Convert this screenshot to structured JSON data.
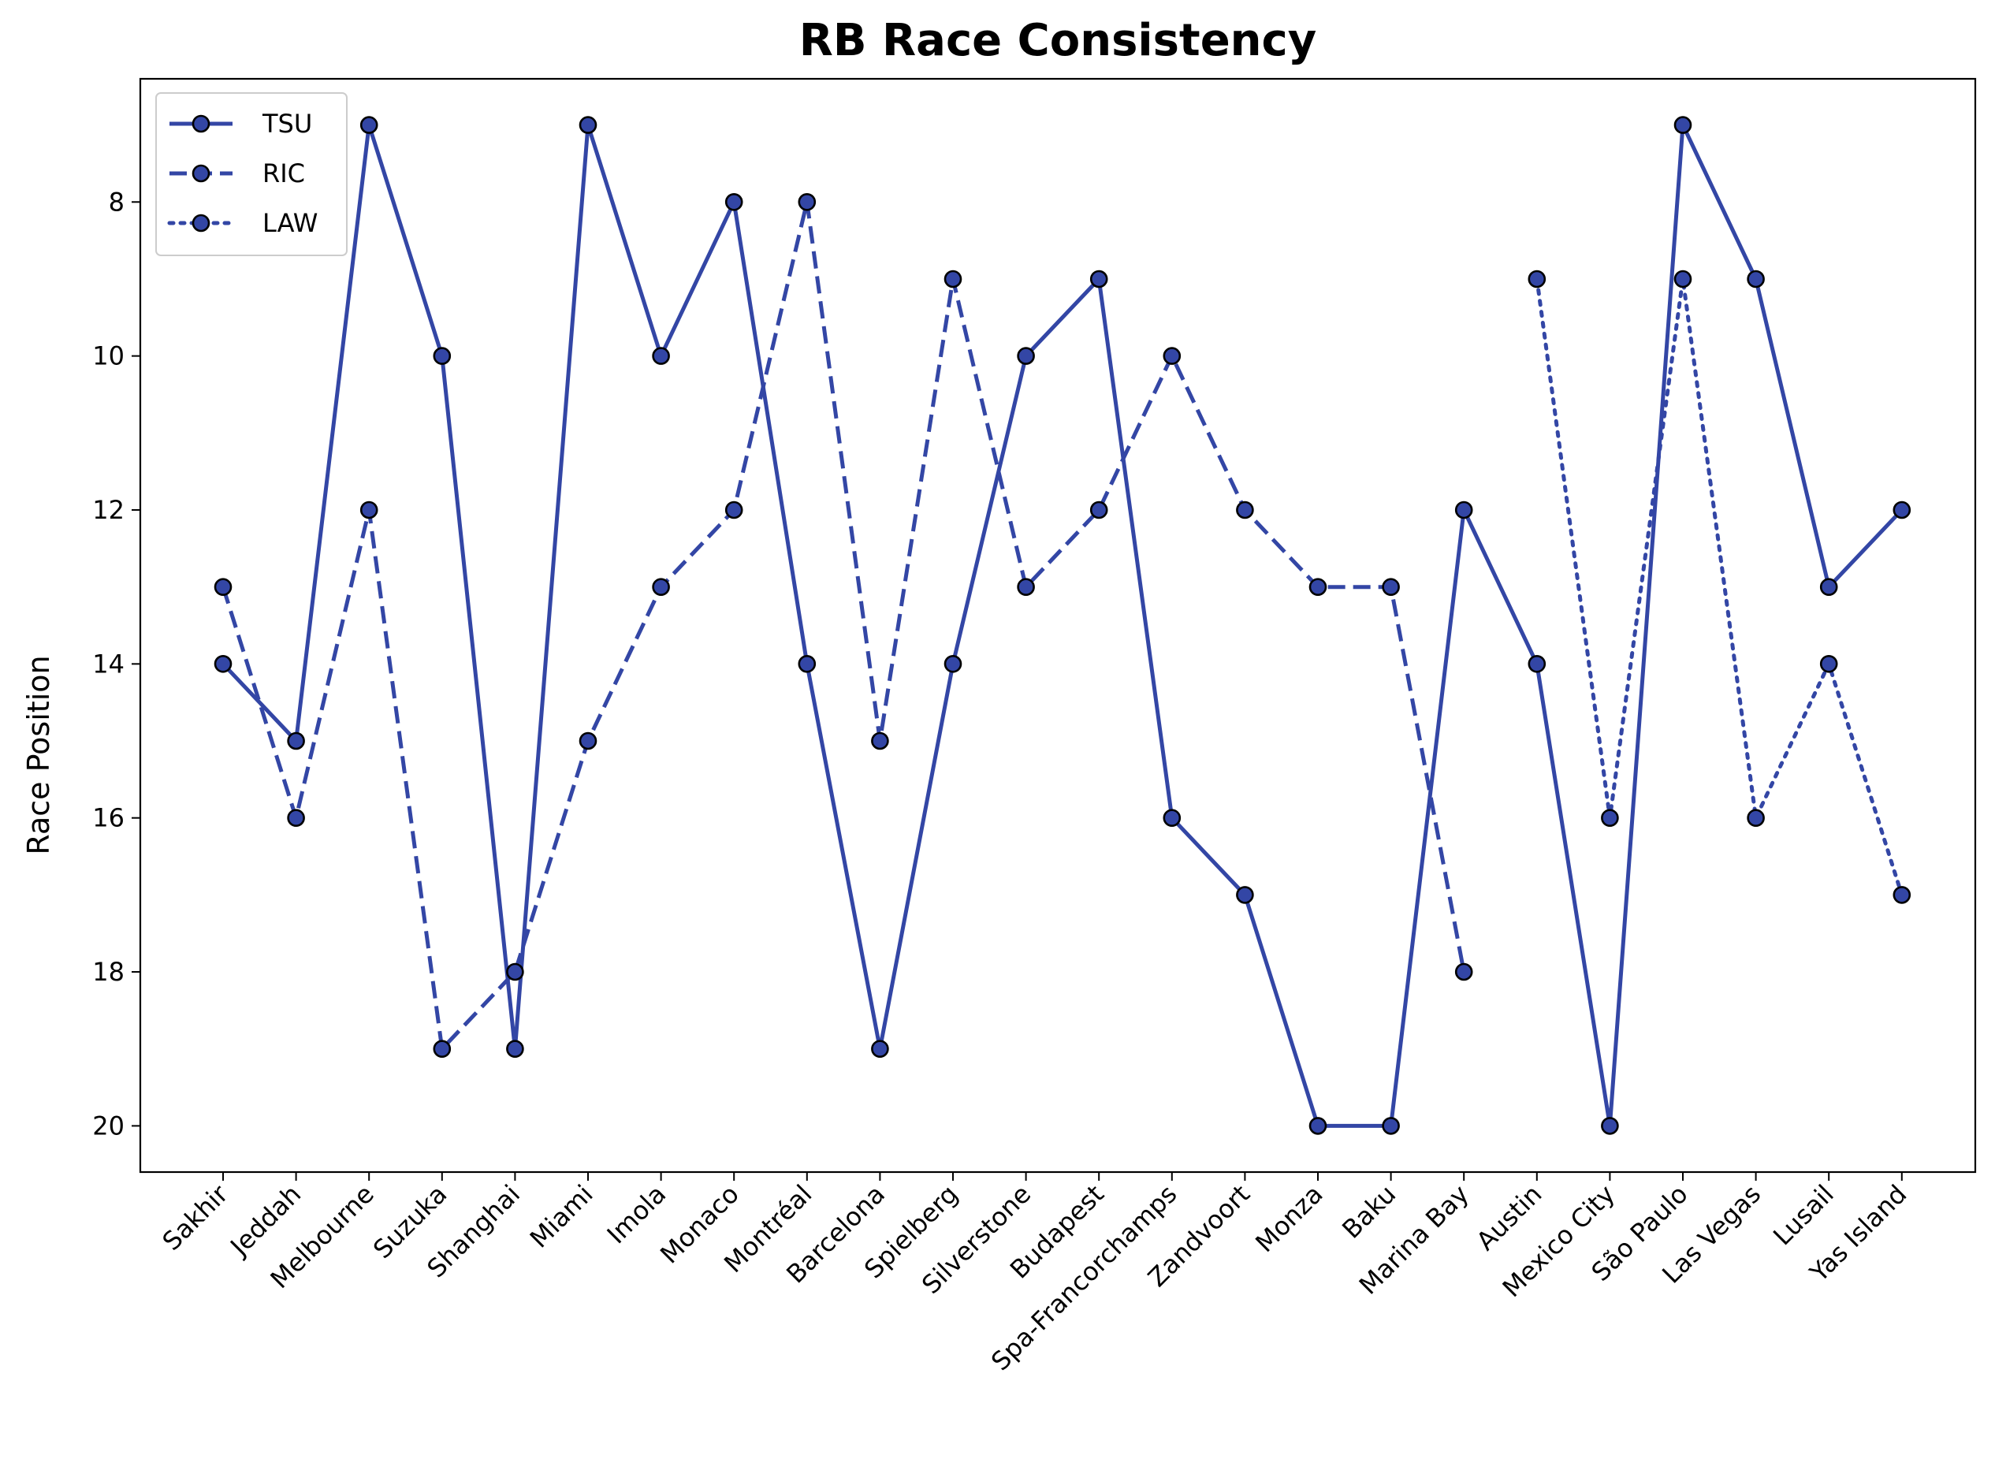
{
  "chart_data": {
    "type": "line",
    "title": "RB Race Consistency",
    "xlabel": "",
    "ylabel": "Race Position",
    "categories": [
      "Sakhir",
      "Jeddah",
      "Melbourne",
      "Suzuka",
      "Shanghai",
      "Miami",
      "Imola",
      "Monaco",
      "Montréal",
      "Barcelona",
      "Spielberg",
      "Silverstone",
      "Budapest",
      "Spa-Francorchamps",
      "Zandvoort",
      "Monza",
      "Baku",
      "Marina Bay",
      "Austin",
      "Mexico City",
      "São Paulo",
      "Las Vegas",
      "Lusail",
      "Yas Island"
    ],
    "ylim": [
      20.6,
      6.4
    ],
    "y_inverted": true,
    "yticks": [
      8,
      10,
      12,
      14,
      16,
      18,
      20
    ],
    "grid": false,
    "legend_position": "top-left",
    "series": [
      {
        "name": "TSU",
        "line_style": "solid",
        "values": [
          14,
          15,
          7,
          10,
          19,
          7,
          10,
          8,
          14,
          19,
          14,
          10,
          9,
          16,
          17,
          20,
          20,
          12,
          14,
          20,
          7,
          9,
          13,
          12
        ]
      },
      {
        "name": "RIC",
        "line_style": "dashed",
        "values": [
          13,
          16,
          12,
          19,
          18,
          15,
          13,
          12,
          8,
          15,
          9,
          13,
          12,
          10,
          12,
          13,
          13,
          18,
          null,
          null,
          null,
          null,
          null,
          null
        ]
      },
      {
        "name": "LAW",
        "line_style": "dotted",
        "values": [
          null,
          null,
          null,
          null,
          null,
          null,
          null,
          null,
          null,
          null,
          null,
          null,
          null,
          null,
          null,
          null,
          null,
          null,
          9,
          16,
          9,
          16,
          14,
          17
        ]
      }
    ],
    "colors": {
      "line": "#3346a5",
      "marker_face": "#3346a5",
      "marker_edge": "#000000"
    }
  }
}
